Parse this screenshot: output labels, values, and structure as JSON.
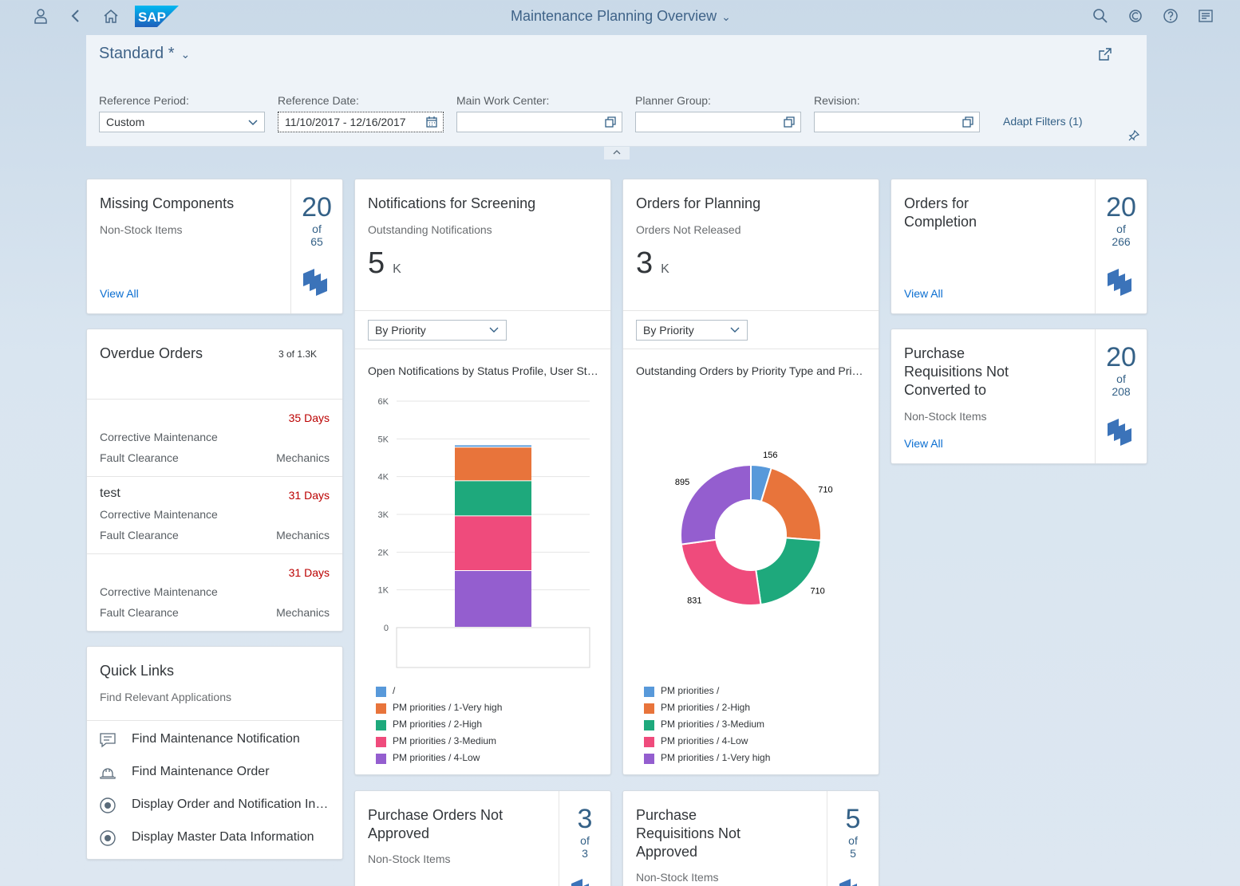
{
  "shell": {
    "title": "Maintenance Planning Overview",
    "logo_text": "SAP"
  },
  "filterbar": {
    "variant": "Standard *",
    "fields": [
      {
        "label": "Reference Period:",
        "value": "Custom"
      },
      {
        "label": "Reference Date:",
        "value": "11/10/2017 - 12/16/2017"
      },
      {
        "label": "Main Work Center:",
        "value": ""
      },
      {
        "label": "Planner Group:",
        "value": ""
      },
      {
        "label": "Revision:",
        "value": ""
      }
    ],
    "adapt_filters": "Adapt Filters (1)"
  },
  "cards": {
    "missing_components": {
      "title": "Missing Components",
      "sub": "Non-Stock Items",
      "view_all": "View All",
      "value": "20",
      "of": "of",
      "total": "65"
    },
    "orders_completion": {
      "title_line1": "Orders for",
      "title_line2": "Completion",
      "view_all": "View All",
      "value": "20",
      "of": "of",
      "total": "266"
    },
    "purchase_req": {
      "title_line1": "Purchase",
      "title_line2": "Requisitions Not",
      "title_line3": "Converted to",
      "sub": "Non-Stock Items",
      "view_all": "View All",
      "value": "20",
      "of": "of",
      "total": "208"
    },
    "overdue": {
      "title": "Overdue Orders",
      "count": "3 of 1.3K",
      "rows": [
        {
          "name": "",
          "days": "35 Days",
          "type": "Corrective Maintenance",
          "activity": "Fault Clearance",
          "work_center": "Mechanics"
        },
        {
          "name": "test",
          "days": "31 Days",
          "type": "Corrective Maintenance",
          "activity": "Fault Clearance",
          "work_center": "Mechanics"
        },
        {
          "name": "",
          "days": "31 Days",
          "type": "Corrective Maintenance",
          "activity": "Fault Clearance",
          "work_center": "Mechanics"
        }
      ]
    },
    "quick_links": {
      "title": "Quick Links",
      "sub": "Find Relevant Applications",
      "items": [
        {
          "label": "Find Maintenance Notification",
          "icon": "notification-icon"
        },
        {
          "label": "Find Maintenance Order",
          "icon": "helmet-icon"
        },
        {
          "label": "Display Order and Notification Information",
          "icon": "radio-target-icon"
        },
        {
          "label": "Display Master Data Information",
          "icon": "radio-target-icon"
        }
      ]
    },
    "notifications": {
      "title": "Notifications for Screening",
      "sub": "Outstanding Notifications",
      "kpi": "5",
      "unit": "K",
      "select": "By Priority",
      "chart_title": "Open Notifications by Status Profile, User Status and Priority"
    },
    "orders_planning": {
      "title": "Orders for Planning",
      "sub": "Orders Not Released",
      "kpi": "3",
      "unit": "K",
      "select": "By Priority",
      "chart_title": "Outstanding Orders by Priority Type and Priority"
    },
    "po_not_approved": {
      "title_line1": "Purchase Orders Not",
      "title_line2": "Approved",
      "sub": "Non-Stock Items",
      "value": "3",
      "of": "of",
      "total": "3"
    },
    "pr_not_approved": {
      "title_line1": "Purchase",
      "title_line2": "Requisitions Not",
      "title_line3": "Approved",
      "sub": "Non-Stock Items",
      "value": "5",
      "of": "of",
      "total": "5"
    }
  },
  "chart_data": [
    {
      "type": "bar",
      "stacked": true,
      "categories": [
        ""
      ],
      "ylim": [
        0,
        6000
      ],
      "yticks": [
        "0",
        "1K",
        "2K",
        "3K",
        "4K",
        "5K",
        "6K"
      ],
      "series": [
        {
          "name": "PM priorities / 4-Low",
          "values": [
            1500
          ],
          "color": "#945ecf"
        },
        {
          "name": "PM priorities / 3-Medium",
          "values": [
            1450
          ],
          "color": "#ef4b7c"
        },
        {
          "name": "PM priorities / 2-High",
          "values": [
            930
          ],
          "color": "#1ea97c"
        },
        {
          "name": "PM priorities / 1-Very high",
          "values": [
            890
          ],
          "color": "#e8743b"
        },
        {
          "name": "/",
          "values": [
            60
          ],
          "color": "#5899da"
        }
      ],
      "legend_order": [
        "/",
        "PM priorities / 1-Very high",
        "PM priorities / 2-High",
        "PM priorities / 3-Medium",
        "PM priorities / 4-Low"
      ]
    },
    {
      "type": "pie",
      "donut": true,
      "slices": [
        {
          "name": "PM priorities /",
          "value": 156,
          "color": "#5899da"
        },
        {
          "name": "PM priorities / 2-High",
          "value": 710,
          "color": "#e8743b"
        },
        {
          "name": "PM priorities / 3-Medium",
          "value": 710,
          "color": "#1ea97c"
        },
        {
          "name": "PM priorities / 4-Low",
          "value": 831,
          "color": "#ef4b7c"
        },
        {
          "name": "PM priorities / 1-Very high",
          "value": 895,
          "color": "#945ecf"
        }
      ]
    }
  ]
}
